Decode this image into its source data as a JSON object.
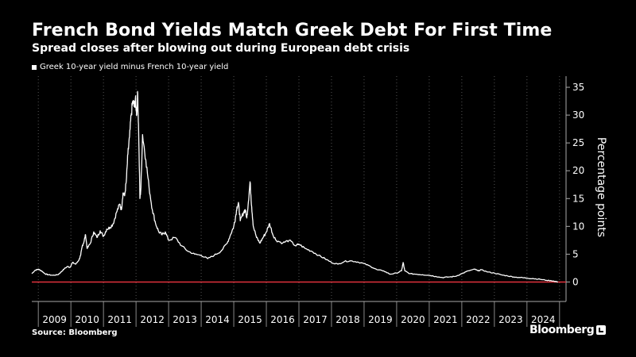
{
  "header": {
    "title": "French Bond Yields Match Greek Debt For First Time",
    "subtitle": "Spread closes after blowing out during European debt crisis"
  },
  "footer": {
    "source": "Source: Bloomberg",
    "brand": "Bloomberg"
  },
  "colors": {
    "background": "#000000",
    "line": "#ffffff",
    "zero_line": "#e0323c",
    "grid": "#555555"
  },
  "chart_data": {
    "type": "line",
    "ylabel": "Percentage points",
    "xlim": [
      2008.8,
      2025.2
    ],
    "ylim": [
      -3.5,
      37
    ],
    "yticks": [
      0,
      5,
      10,
      15,
      20,
      25,
      30,
      35
    ],
    "x_tick_labels": [
      "2009",
      "2010",
      "2011",
      "2012",
      "2013",
      "2014",
      "2015",
      "2016",
      "2017",
      "2018",
      "2019",
      "2020",
      "2021",
      "2022",
      "2023",
      "2024"
    ],
    "legend_position": "top-left",
    "grid": "vertical dotted at year boundaries",
    "reference_line": {
      "y": 0
    },
    "series": [
      {
        "name": "Greek 10-year yield minus French 10-year yield",
        "x": [
          2008.8,
          2008.9,
          2009.0,
          2009.1,
          2009.2,
          2009.3,
          2009.45,
          2009.6,
          2009.7,
          2009.8,
          2009.9,
          2009.97,
          2010.05,
          2010.15,
          2010.25,
          2010.3,
          2010.35,
          2010.4,
          2010.45,
          2010.5,
          2010.6,
          2010.7,
          2010.8,
          2010.9,
          2011.0,
          2011.1,
          2011.2,
          2011.3,
          2011.4,
          2011.5,
          2011.55,
          2011.6,
          2011.65,
          2011.7,
          2011.75,
          2011.8,
          2011.85,
          2011.9,
          2011.95,
          2011.98,
          2012.02,
          2012.05,
          2012.08,
          2012.12,
          2012.15,
          2012.2,
          2012.3,
          2012.4,
          2012.5,
          2012.6,
          2012.7,
          2012.8,
          2012.9,
          2013.0,
          2013.2,
          2013.4,
          2013.6,
          2013.8,
          2014.0,
          2014.2,
          2014.4,
          2014.6,
          2014.8,
          2014.9,
          2015.0,
          2015.05,
          2015.1,
          2015.15,
          2015.2,
          2015.3,
          2015.35,
          2015.4,
          2015.45,
          2015.5,
          2015.55,
          2015.6,
          2015.7,
          2015.8,
          2015.9,
          2016.0,
          2016.1,
          2016.2,
          2016.3,
          2016.5,
          2016.7,
          2016.9,
          2017.0,
          2017.2,
          2017.4,
          2017.6,
          2017.8,
          2018.0,
          2018.2,
          2018.4,
          2018.6,
          2018.8,
          2019.0,
          2019.2,
          2019.4,
          2019.6,
          2019.8,
          2020.0,
          2020.15,
          2020.2,
          2020.25,
          2020.4,
          2020.6,
          2020.8,
          2021.0,
          2021.2,
          2021.4,
          2021.6,
          2021.8,
          2022.0,
          2022.2,
          2022.4,
          2022.5,
          2022.6,
          2022.8,
          2023.0,
          2023.2,
          2023.4,
          2023.6,
          2023.8,
          2024.0,
          2024.2,
          2024.4,
          2024.6,
          2024.8,
          2024.95
        ],
        "y": [
          1.5,
          2.1,
          2.3,
          2.0,
          1.5,
          1.3,
          1.2,
          1.3,
          1.8,
          2.4,
          2.8,
          2.6,
          3.5,
          3.2,
          4.0,
          4.8,
          6.5,
          7.2,
          8.5,
          6.0,
          7.0,
          9.0,
          8.0,
          9.2,
          8.2,
          9.5,
          9.8,
          10.5,
          12.5,
          14.0,
          13.0,
          16.0,
          15.5,
          18.0,
          23.0,
          26.0,
          30.0,
          32.5,
          31.5,
          33.0,
          30.0,
          34.0,
          27.0,
          15.0,
          17.0,
          26.5,
          22.0,
          17.0,
          13.0,
          10.5,
          9.0,
          8.5,
          9.0,
          7.5,
          8.0,
          6.5,
          5.5,
          5.0,
          4.8,
          4.2,
          4.8,
          5.5,
          7.0,
          8.5,
          10.0,
          11.5,
          13.5,
          14.0,
          11.0,
          12.5,
          13.0,
          11.5,
          14.5,
          18.0,
          13.5,
          10.0,
          8.0,
          7.0,
          8.0,
          9.0,
          10.5,
          8.5,
          7.5,
          7.0,
          7.5,
          6.5,
          6.8,
          6.0,
          5.5,
          4.8,
          4.2,
          3.5,
          3.2,
          3.7,
          3.8,
          3.6,
          3.3,
          2.8,
          2.2,
          2.0,
          1.4,
          1.6,
          2.0,
          3.5,
          2.0,
          1.5,
          1.4,
          1.3,
          1.2,
          1.0,
          0.8,
          0.9,
          1.0,
          1.5,
          2.0,
          2.3,
          2.0,
          2.2,
          1.8,
          1.6,
          1.3,
          1.1,
          0.9,
          0.8,
          0.7,
          0.6,
          0.5,
          0.3,
          0.2,
          0.0
        ]
      }
    ]
  }
}
